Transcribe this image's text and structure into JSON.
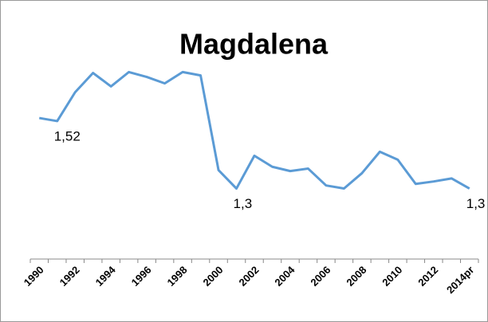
{
  "chart_data": {
    "type": "line",
    "title": "Magdalena",
    "categories": [
      "1990",
      null,
      "1992",
      null,
      "1994",
      null,
      "1996",
      null,
      "1998",
      null,
      "2000",
      null,
      "2002",
      null,
      "2004",
      null,
      "2006",
      null,
      "2008",
      null,
      "2010",
      null,
      "2012",
      null,
      "2014pr"
    ],
    "values": [
      1.53,
      1.52,
      1.614,
      1.677,
      1.633,
      1.68,
      1.664,
      1.643,
      1.68,
      1.669,
      1.36,
      1.3,
      1.407,
      1.371,
      1.357,
      1.365,
      1.31,
      1.3,
      1.35,
      1.42,
      1.394,
      1.315,
      1.323,
      1.333,
      1.3
    ],
    "value_labels": [
      null,
      "1,52",
      null,
      null,
      null,
      null,
      null,
      null,
      null,
      null,
      null,
      "1,3",
      null,
      null,
      null,
      null,
      null,
      null,
      null,
      null,
      null,
      null,
      null,
      null,
      "1,3"
    ],
    "color": "#5b9bd5",
    "ylim": [
      1.07,
      1.85
    ]
  }
}
